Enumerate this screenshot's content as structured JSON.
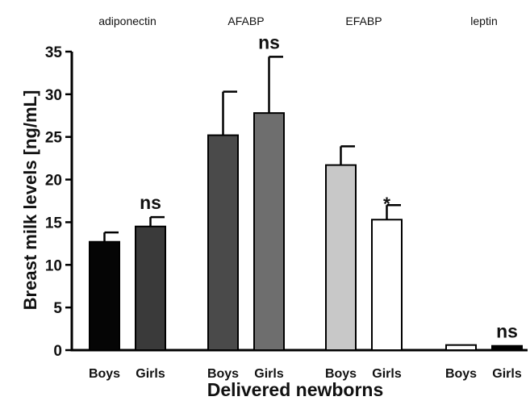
{
  "chart_data": {
    "type": "bar",
    "xlabel": "Delivered newborns",
    "ylabel": "Breast milk levels [ng/mL]",
    "ylim": [
      0,
      35
    ],
    "yticks": [
      0,
      5,
      10,
      15,
      20,
      25,
      30,
      35
    ],
    "grid": false,
    "groups": [
      {
        "name": "adiponectin",
        "bars": [
          {
            "label": "Boys",
            "value": 12.7,
            "error": 1.1,
            "fill": "#050505",
            "annotation": ""
          },
          {
            "label": "Girls",
            "value": 14.5,
            "error": 1.1,
            "fill": "#3a3a3a",
            "annotation": "ns"
          }
        ]
      },
      {
        "name": "AFABP",
        "bars": [
          {
            "label": "Boys",
            "value": 25.2,
            "error": 5.1,
            "fill": "#4a4a4a",
            "annotation": ""
          },
          {
            "label": "Girls",
            "value": 27.8,
            "error": 6.6,
            "fill": "#6e6e6e",
            "annotation": "ns"
          }
        ]
      },
      {
        "name": "EFABP",
        "bars": [
          {
            "label": "Boys",
            "value": 21.7,
            "error": 2.2,
            "fill": "#c8c8c8",
            "annotation": ""
          },
          {
            "label": "Girls",
            "value": 15.3,
            "error": 1.7,
            "fill": "#ffffff",
            "annotation": "*"
          }
        ]
      },
      {
        "name": "leptin",
        "bars": [
          {
            "label": "Boys",
            "value": 0.6,
            "error": 0.0,
            "fill": "#ffffff",
            "annotation": ""
          },
          {
            "label": "Girls",
            "value": 0.5,
            "error": 0.0,
            "fill": "#000000",
            "annotation": "ns"
          }
        ]
      }
    ]
  }
}
